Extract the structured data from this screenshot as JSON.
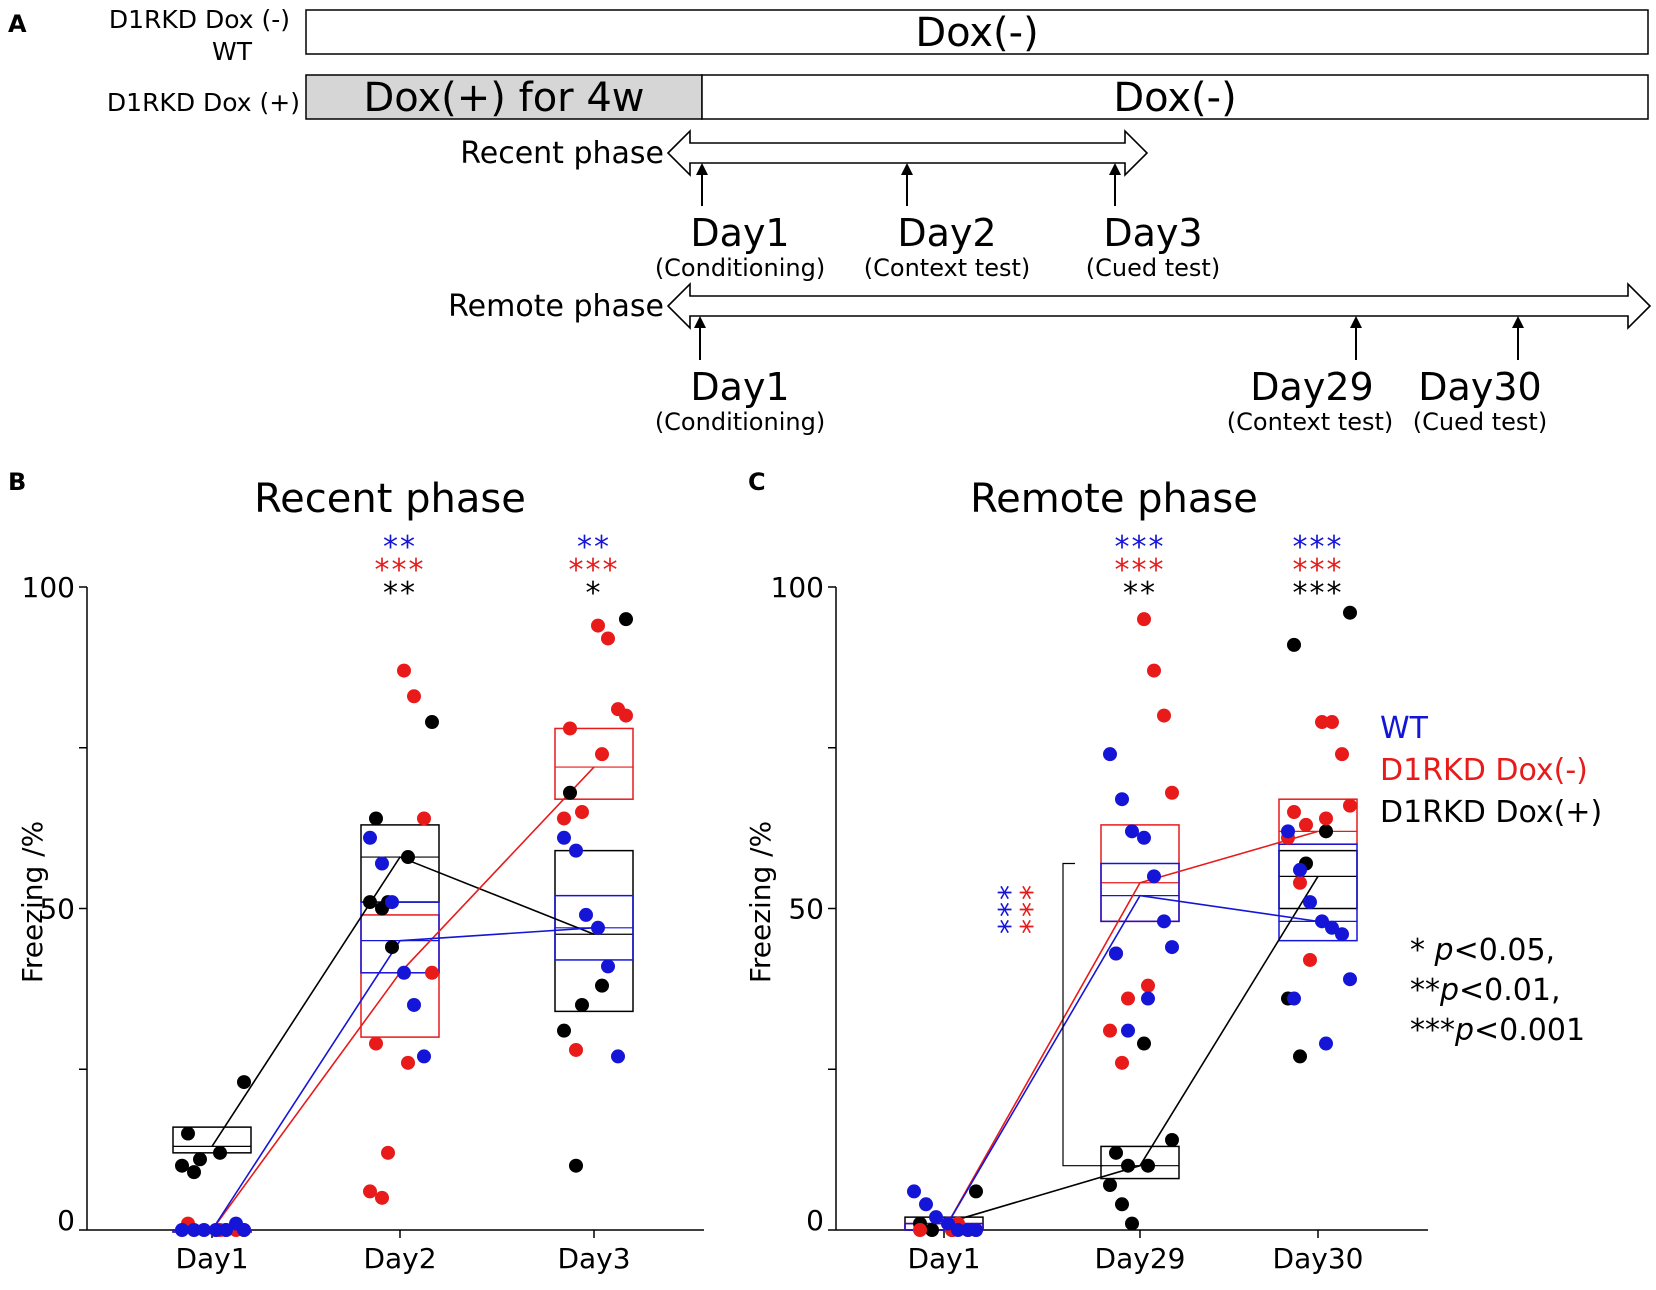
{
  "panels": {
    "A": "A",
    "B": "B",
    "C": "C"
  },
  "timeline": {
    "row1_label_line1": "D1RKD Dox (-)",
    "row1_label_line2": "WT",
    "row1_bar_text": "Dox(-)",
    "row2_label": "D1RKD Dox (+)",
    "row2_gray_text": "Dox(+) for 4w",
    "row2_white_text": "Dox(-)",
    "recent": {
      "label": "Recent phase",
      "days": [
        {
          "day": "Day1",
          "sub": "(Conditioning)"
        },
        {
          "day": "Day2",
          "sub": "(Context test)"
        },
        {
          "day": "Day3",
          "sub": "(Cued test)"
        }
      ]
    },
    "remote": {
      "label": "Remote phase",
      "days": [
        {
          "day": "Day1",
          "sub": "(Conditioning)"
        },
        {
          "day": "Day29",
          "sub": "(Context test)"
        },
        {
          "day": "Day30",
          "sub": "(Cued test)"
        }
      ]
    }
  },
  "colors": {
    "WT": "#1515d8",
    "D1RKD Dox(-)": "#e81a1a",
    "D1RKD Dox(+)": "#000000"
  },
  "legend": [
    "WT",
    "D1RKD Dox(-)",
    "D1RKD Dox(+)"
  ],
  "pvalue_notes": [
    {
      "stars": "* ",
      "p": "p",
      "rest": "<0.05,"
    },
    {
      "stars": "**",
      "p": "p",
      "rest": "<0.01,"
    },
    {
      "stars": "***",
      "p": "p",
      "rest": "<0.001"
    }
  ],
  "chart_data": [
    {
      "id": "B",
      "type": "scatter",
      "title": "Recent phase",
      "ylabel": "Freezing /%",
      "xlabel": "",
      "ylim": [
        0,
        100
      ],
      "yticks": [
        0,
        50,
        100
      ],
      "categories": [
        "Day1",
        "Day2",
        "Day3"
      ],
      "series": [
        {
          "name": "WT",
          "medians": [
            0,
            45,
            47
          ],
          "boxes": [
            [
              0,
              0,
              0
            ],
            [
              40,
              45,
              51
            ],
            [
              42,
              47,
              52
            ]
          ],
          "points": [
            [
              0,
              0,
              0,
              0,
              0,
              1,
              0
            ],
            [
              61,
              57,
              51,
              40,
              35,
              27
            ],
            [
              61,
              59,
              49,
              47,
              41,
              27
            ]
          ],
          "stars": [
            "",
            "**",
            "**"
          ]
        },
        {
          "name": "D1RKD Dox(-)",
          "medians": [
            0,
            40,
            72
          ],
          "boxes": [
            [
              0,
              0,
              0
            ],
            [
              30,
              40,
              49
            ],
            [
              67,
              72,
              78
            ]
          ],
          "points": [
            [
              0,
              0,
              0,
              0,
              1,
              0
            ],
            [
              87,
              83,
              64,
              40,
              29,
              26,
              12,
              6,
              5
            ],
            [
              94,
              92,
              81,
              80,
              78,
              74,
              65,
              64,
              28
            ]
          ],
          "stars": [
            "",
            "***",
            "***"
          ]
        },
        {
          "name": "D1RKD Dox(+)",
          "medians": [
            13,
            58,
            46
          ],
          "boxes": [
            [
              12,
              13,
              16
            ],
            [
              51,
              58,
              63
            ],
            [
              34,
              46,
              59
            ]
          ],
          "points": [
            [
              23,
              15,
              12,
              11,
              10,
              9
            ],
            [
              79,
              64,
              58,
              51,
              51,
              50,
              44
            ],
            [
              95,
              68,
              38,
              35,
              31,
              10
            ]
          ],
          "stars": [
            "",
            "**",
            "*"
          ]
        }
      ]
    },
    {
      "id": "C",
      "type": "scatter",
      "title": "Remote phase",
      "ylabel": "Freezing /%",
      "xlabel": "",
      "ylim": [
        0,
        100
      ],
      "yticks": [
        0,
        50,
        100
      ],
      "categories": [
        "Day1",
        "Day29",
        "Day30"
      ],
      "series": [
        {
          "name": "WT",
          "medians": [
            0,
            52,
            48
          ],
          "boxes": [
            [
              0,
              0,
              1
            ],
            [
              48,
              52,
              57
            ],
            [
              45,
              48,
              60
            ]
          ],
          "points": [
            [
              6,
              4,
              2,
              1,
              0,
              0,
              0
            ],
            [
              74,
              67,
              62,
              61,
              55,
              48,
              44,
              43,
              36,
              31
            ],
            [
              62,
              56,
              51,
              48,
              47,
              46,
              39,
              36,
              29
            ]
          ],
          "stars": [
            "",
            "***",
            "***"
          ]
        },
        {
          "name": "D1RKD Dox(-)",
          "medians": [
            0,
            54,
            62
          ],
          "boxes": [
            [
              0,
              0,
              1
            ],
            [
              48,
              54,
              63
            ],
            [
              60,
              62,
              67
            ]
          ],
          "points": [
            [
              1,
              1,
              0,
              0,
              0,
              0
            ],
            [
              95,
              87,
              80,
              68,
              43,
              38,
              36,
              31,
              26
            ],
            [
              79,
              79,
              74,
              66,
              65,
              64,
              63,
              61,
              54,
              42
            ]
          ],
          "stars": [
            "",
            "***",
            "***"
          ]
        },
        {
          "name": "D1RKD Dox(+)",
          "medians": [
            1,
            10,
            55
          ],
          "boxes": [
            [
              0,
              1,
              2
            ],
            [
              8,
              10,
              13
            ],
            [
              50,
              55,
              59
            ]
          ],
          "points": [
            [
              6,
              1,
              0,
              0
            ],
            [
              14,
              12,
              10,
              10,
              7,
              4,
              1,
              29
            ],
            [
              96,
              91,
              62,
              57,
              36,
              27
            ]
          ],
          "stars": [
            "",
            "**",
            "***"
          ]
        }
      ],
      "bracket": {
        "from_series": "D1RKD Dox(+)",
        "category": "Day29",
        "stars": [
          [
            "WT",
            "***"
          ],
          [
            "D1RKD Dox(-)",
            "***"
          ]
        ]
      }
    }
  ]
}
